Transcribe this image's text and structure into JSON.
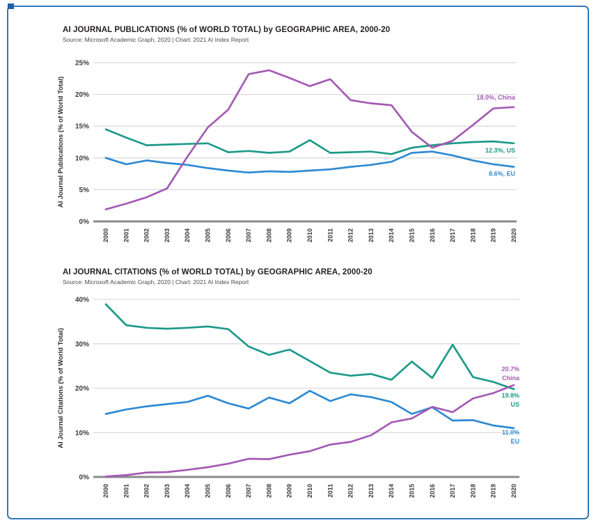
{
  "page": {
    "border_color": "#2e79bd"
  },
  "chart_data": [
    {
      "type": "line",
      "title": "AI JOURNAL PUBLICATIONS (% of WORLD TOTAL) by GEOGRAPHIC AREA, 2000-20",
      "source": "Source: Microsoft Academic Graph, 2020 | Chart: 2021 AI Index Report",
      "ylabel": "AI Journal Publications (% of World Total)",
      "x": [
        "2000",
        "2001",
        "2002",
        "2003",
        "2004",
        "2005",
        "2006",
        "2007",
        "2008",
        "2009",
        "2010",
        "2011",
        "2012",
        "2013",
        "2014",
        "2015",
        "2016",
        "2017",
        "2018",
        "2019",
        "2020"
      ],
      "ylim": [
        0,
        25
      ],
      "y_ticks": [
        0,
        5,
        10,
        15,
        20,
        25
      ],
      "y_tick_suffix": "%",
      "grid": "horizontal",
      "legend_position": "right-edge-labels",
      "series": [
        {
          "name": "US",
          "color": "#1d9a89",
          "values": [
            14.5,
            13.2,
            12.0,
            12.1,
            12.2,
            12.3,
            10.9,
            11.1,
            10.8,
            11.0,
            12.8,
            10.8,
            10.9,
            11.0,
            10.6,
            11.6,
            12.0,
            12.3,
            12.5,
            12.6,
            12.3
          ],
          "end_label": [
            "12.3%, US"
          ],
          "label_dy": 13
        },
        {
          "name": "EU",
          "color": "#2e8ad3",
          "values": [
            10.0,
            9.0,
            9.6,
            9.2,
            8.9,
            8.4,
            8.0,
            7.7,
            7.9,
            7.8,
            8.0,
            8.2,
            8.6,
            8.9,
            9.4,
            10.8,
            11.0,
            10.4,
            9.6,
            9.0,
            8.6
          ],
          "end_label": [
            "8.6%, EU"
          ],
          "label_dy": 13
        },
        {
          "name": "China",
          "color": "#a45ab4",
          "values": [
            1.9,
            2.8,
            3.8,
            5.2,
            10.2,
            14.8,
            17.6,
            23.2,
            23.8,
            22.6,
            21.3,
            22.4,
            19.1,
            18.6,
            18.3,
            14.1,
            11.6,
            12.7,
            15.2,
            17.8,
            18.0
          ],
          "end_label": [
            "18.0%, China"
          ],
          "label_dy": -11
        }
      ]
    },
    {
      "type": "line",
      "title": "AI JOURNAL CITATIONS (% of WORLD TOTAL) by GEOGRAPHIC AREA, 2000-20",
      "source": "Source: Microsoft Academic Graph, 2020 | Chart: 2021 AI Index Report",
      "ylabel": "AI Journal Citations (% of World Total)",
      "x": [
        "2000",
        "2001",
        "2002",
        "2003",
        "2004",
        "2005",
        "2006",
        "2007",
        "2008",
        "2009",
        "2010",
        "2011",
        "2012",
        "2013",
        "2014",
        "2015",
        "2016",
        "2017",
        "2018",
        "2019",
        "2020"
      ],
      "ylim": [
        0,
        40
      ],
      "y_ticks": [
        0,
        10,
        20,
        30,
        40
      ],
      "y_tick_suffix": "%",
      "grid": "horizontal",
      "legend_position": "right-edge-labels",
      "series": [
        {
          "name": "US",
          "color": "#1d9a89",
          "values": [
            38.9,
            34.2,
            33.6,
            33.4,
            33.6,
            33.9,
            33.3,
            29.4,
            27.5,
            28.7,
            26.1,
            23.5,
            22.8,
            23.2,
            21.9,
            26.0,
            22.3,
            29.8,
            22.5,
            21.4,
            19.8
          ],
          "end_label": [
            "19.8%",
            "US"
          ],
          "label_dy": 12
        },
        {
          "name": "EU",
          "color": "#2e8ad3",
          "values": [
            14.2,
            15.2,
            15.9,
            16.4,
            16.9,
            18.3,
            16.6,
            15.4,
            17.9,
            16.6,
            19.4,
            17.1,
            18.6,
            18.0,
            16.9,
            14.2,
            15.7,
            12.7,
            12.8,
            11.6,
            11.0
          ],
          "end_label": [
            "11.0%",
            "EU"
          ],
          "label_dy": 9
        },
        {
          "name": "China",
          "color": "#a45ab4",
          "values": [
            0.1,
            0.4,
            1.0,
            1.1,
            1.6,
            2.2,
            3.0,
            4.1,
            4.0,
            5.0,
            5.8,
            7.3,
            7.9,
            9.4,
            12.3,
            13.2,
            15.8,
            14.6,
            17.7,
            18.9,
            20.7
          ],
          "end_label": [
            "20.7%",
            "China"
          ],
          "label_dy": -20
        }
      ]
    }
  ]
}
